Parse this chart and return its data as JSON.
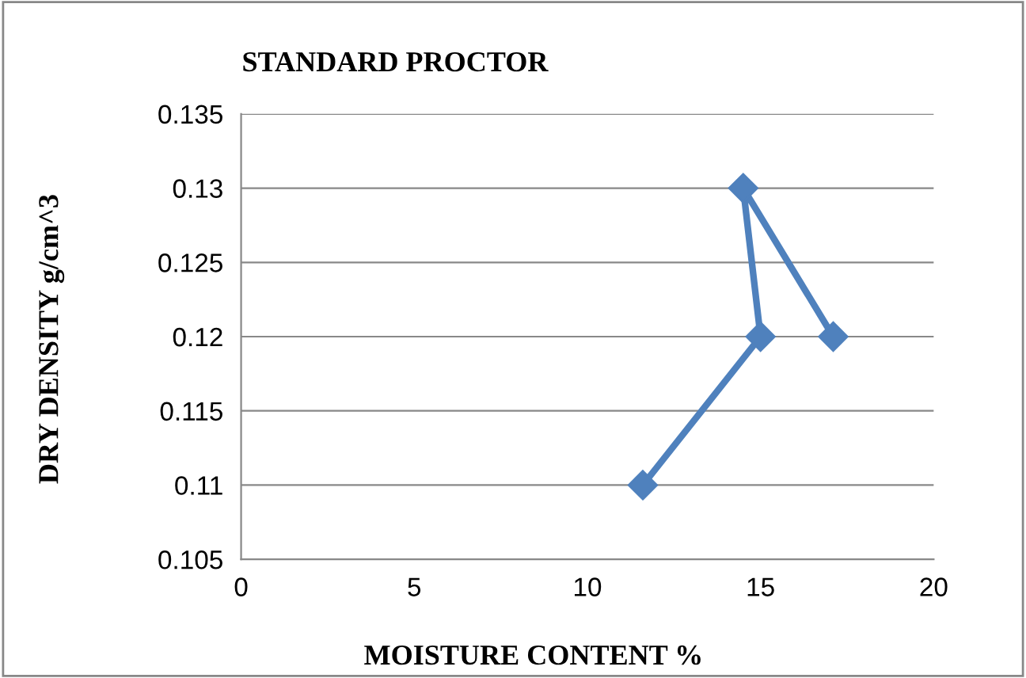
{
  "chart_data": {
    "type": "line",
    "title": "STANDARD PROCTOR",
    "xlabel": "MOISTURE CONTENT %",
    "ylabel": "DRY DENSITY g/cm^3",
    "series": [
      {
        "color": "#4f81bd",
        "x": [
          11.6,
          15,
          14.5,
          17.1
        ],
        "values": [
          0.11,
          0.12,
          0.13,
          0.12
        ]
      }
    ],
    "xlim": [
      0,
      20
    ],
    "xticks": [
      0,
      5,
      10,
      15,
      20
    ],
    "ylim": [
      0.105,
      0.135
    ],
    "yticks": [
      0.105,
      0.11,
      0.115,
      0.12,
      0.125,
      0.13,
      0.135
    ],
    "grid": "y",
    "marker": "diamond",
    "line_style": "solid"
  }
}
